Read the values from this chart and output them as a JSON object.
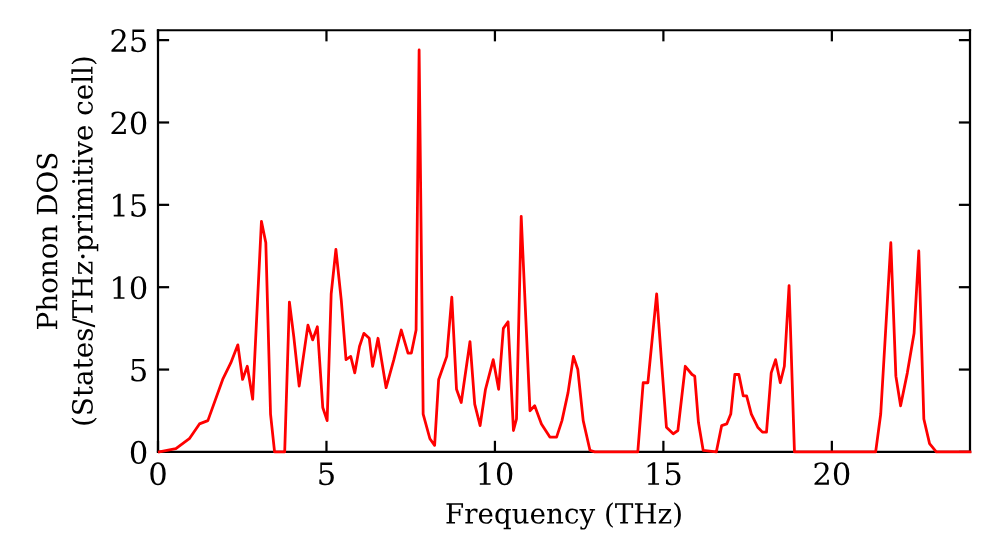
{
  "chart_data": {
    "type": "line",
    "xlabel": "Frequency (THz)",
    "ylabel": "Phonon DOS\n(States/THz·primitive cell)",
    "xlim": [
      0,
      24.1
    ],
    "ylim": [
      0,
      25.6
    ],
    "xticks": [
      0,
      5,
      10,
      15,
      20
    ],
    "yticks": [
      0,
      5,
      10,
      15,
      20,
      25
    ],
    "grid": false,
    "marker": "none",
    "line_style": "solid",
    "series": [
      {
        "color": "#ff0000",
        "x": [
          0.04,
          0.53,
          0.93,
          1.23,
          1.48,
          1.92,
          2.16,
          2.37,
          2.51,
          2.65,
          2.81,
          3.07,
          3.2,
          3.34,
          3.46,
          3.76,
          3.9,
          4.03,
          4.19,
          4.45,
          4.59,
          4.73,
          4.89,
          5.02,
          5.14,
          5.28,
          5.44,
          5.58,
          5.72,
          5.84,
          5.98,
          6.11,
          6.27,
          6.37,
          6.53,
          6.77,
          7.0,
          7.22,
          7.42,
          7.52,
          7.66,
          7.75,
          7.87,
          8.07,
          8.21,
          8.33,
          8.57,
          8.72,
          8.86,
          9.0,
          9.26,
          9.4,
          9.56,
          9.72,
          9.95,
          10.11,
          10.25,
          10.39,
          10.55,
          10.64,
          10.78,
          11.04,
          11.18,
          11.38,
          11.63,
          11.83,
          11.99,
          12.17,
          12.33,
          12.46,
          12.62,
          12.82,
          12.96,
          14.24,
          14.4,
          14.54,
          14.8,
          14.94,
          15.09,
          15.29,
          15.43,
          15.65,
          15.85,
          15.93,
          16.04,
          16.18,
          16.57,
          16.73,
          16.88,
          17.0,
          17.12,
          17.24,
          17.37,
          17.47,
          17.61,
          17.8,
          17.94,
          18.06,
          18.2,
          18.33,
          18.47,
          18.59,
          18.73,
          18.89,
          21.3,
          21.45,
          21.75,
          21.9,
          22.04,
          22.24,
          22.44,
          22.58,
          22.73,
          22.9,
          23.1,
          24.1
        ],
        "values": [
          0,
          0.2,
          0.8,
          1.7,
          1.9,
          4.4,
          5.4,
          6.5,
          4.4,
          5.2,
          3.2,
          14.0,
          12.7,
          2.3,
          0,
          0,
          9.1,
          7.0,
          4.0,
          7.7,
          6.8,
          7.6,
          2.7,
          1.9,
          9.6,
          12.3,
          9.2,
          5.6,
          5.8,
          4.8,
          6.4,
          7.2,
          6.9,
          5.2,
          6.9,
          3.9,
          5.6,
          7.4,
          6.0,
          6.0,
          7.4,
          24.4,
          2.3,
          0.8,
          0.4,
          4.4,
          5.8,
          9.4,
          3.8,
          3.0,
          6.7,
          2.9,
          1.6,
          3.8,
          5.6,
          3.8,
          7.5,
          7.9,
          1.3,
          2.0,
          14.3,
          2.5,
          2.8,
          1.7,
          0.9,
          0.9,
          1.9,
          3.6,
          5.8,
          5.0,
          1.9,
          0.1,
          0,
          0,
          4.2,
          4.2,
          9.6,
          5.6,
          1.5,
          1.1,
          1.3,
          5.2,
          4.7,
          4.6,
          1.8,
          0.1,
          0,
          1.6,
          1.7,
          2.3,
          4.7,
          4.7,
          3.4,
          3.4,
          2.3,
          1.5,
          1.2,
          1.2,
          4.8,
          5.6,
          4.2,
          5.2,
          10.1,
          0,
          0,
          2.3,
          12.7,
          4.6,
          2.8,
          4.8,
          7.2,
          12.2,
          2.0,
          0.5,
          0,
          0
        ]
      }
    ]
  }
}
